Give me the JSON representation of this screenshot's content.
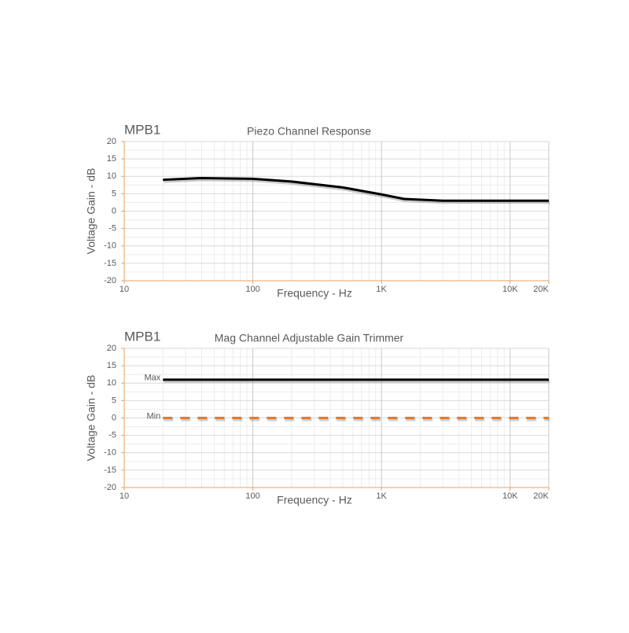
{
  "chart_data": [
    {
      "type": "line",
      "annotation": "MPB1",
      "title": "Piezo Channel Response",
      "xlabel": "Frequency - Hz",
      "ylabel": "Voltage Gain - dB",
      "xscale": "log",
      "xlim": [
        10,
        20000
      ],
      "ylim": [
        -20,
        20
      ],
      "xticks": [
        10,
        100,
        {
          "value": 1000,
          "label": "1K"
        },
        {
          "value": 10000,
          "label": "10K"
        },
        {
          "value": 20000,
          "label": "20K"
        }
      ],
      "yticks": [
        -20,
        -15,
        -10,
        -5,
        0,
        5,
        10,
        15,
        20
      ],
      "grid": true,
      "minor_grid": true,
      "axis_color": "#e8a060",
      "series": [
        {
          "x": [
            20,
            40,
            100,
            200,
            500,
            1000,
            1500,
            3000,
            10000,
            20000
          ],
          "values": [
            9,
            9.5,
            9.3,
            8.5,
            6.8,
            4.8,
            3.5,
            3,
            3,
            3
          ],
          "color": "#000000",
          "style": "solid"
        }
      ]
    },
    {
      "type": "line",
      "annotation": "MPB1",
      "title": "Mag Channel Adjustable Gain Trimmer",
      "xlabel": "Frequency - Hz",
      "ylabel": "Voltage Gain - dB",
      "xscale": "log",
      "xlim": [
        10,
        20000
      ],
      "ylim": [
        -20,
        20
      ],
      "xticks": [
        10,
        100,
        {
          "value": 1000,
          "label": "1K"
        },
        {
          "value": 10000,
          "label": "10K"
        },
        {
          "value": 20000,
          "label": "20K"
        }
      ],
      "yticks": [
        -20,
        -15,
        -10,
        -5,
        0,
        5,
        10,
        15,
        20
      ],
      "grid": true,
      "minor_grid": true,
      "axis_color": "#e8a060",
      "series": [
        {
          "name": "Max",
          "x": [
            20,
            20000
          ],
          "values": [
            11,
            11
          ],
          "color": "#000000",
          "style": "solid"
        },
        {
          "name": "Min",
          "x": [
            20,
            20000
          ],
          "values": [
            0,
            0
          ],
          "color": "#e07b30",
          "style": "dashed"
        }
      ]
    }
  ]
}
